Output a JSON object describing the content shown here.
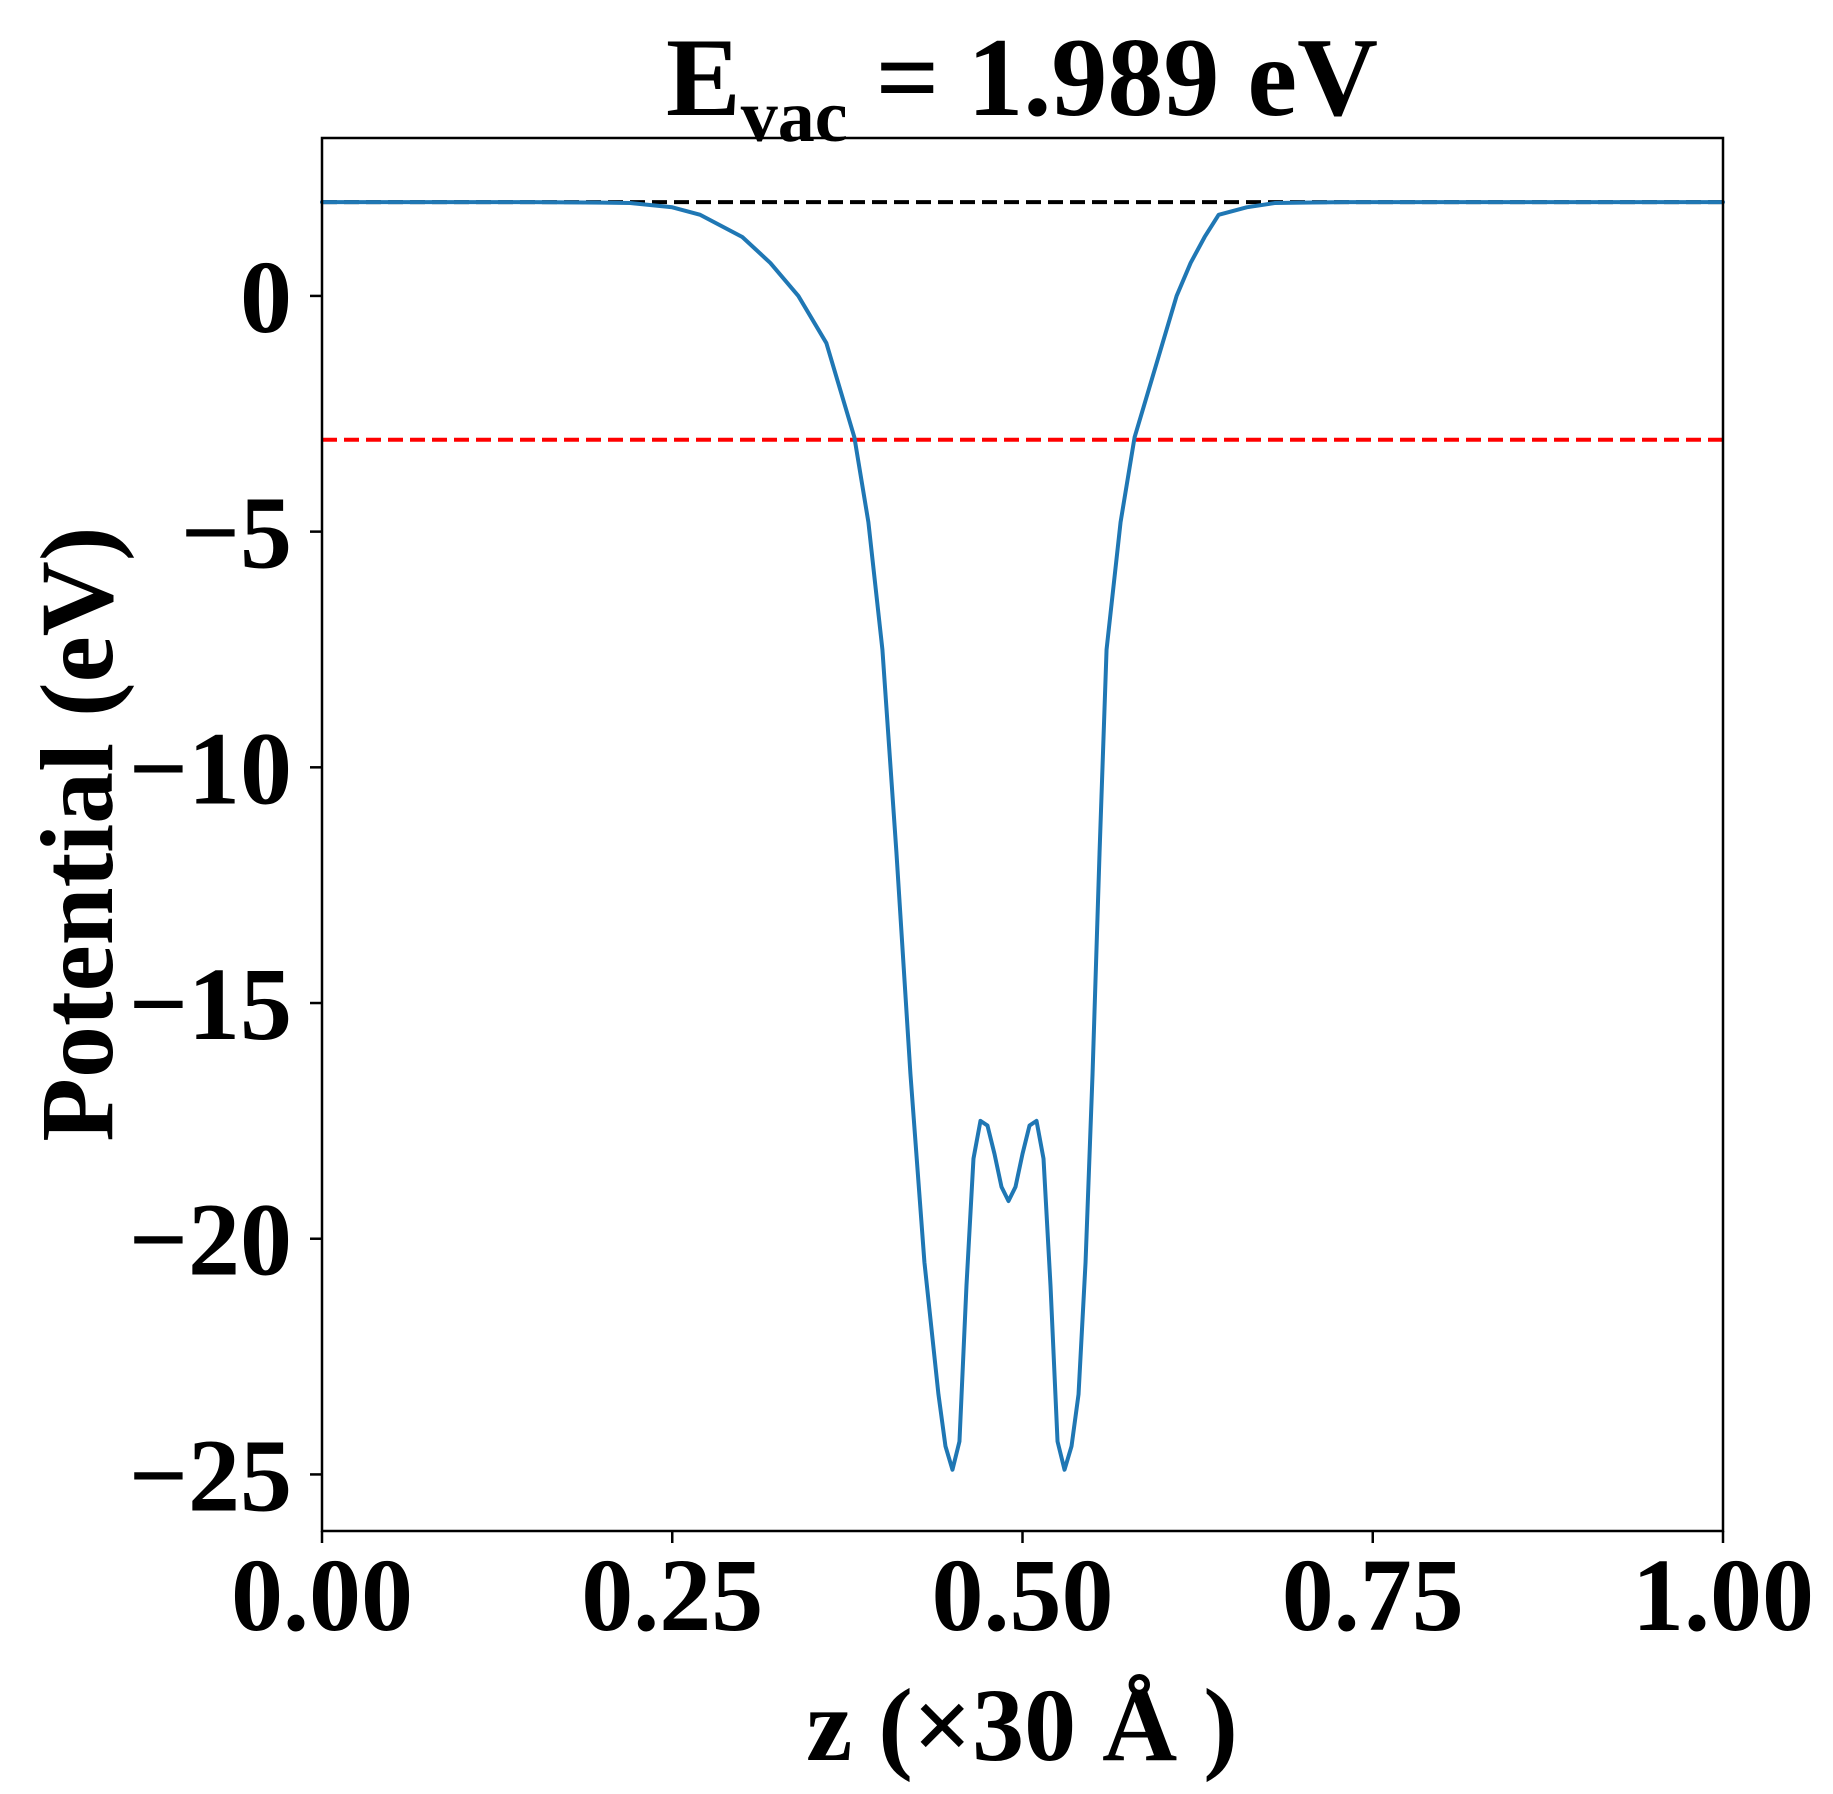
{
  "chart_data": {
    "type": "line",
    "title": {
      "prefix": "E",
      "subscript": "vac",
      "suffix": " = 1.989 eV"
    },
    "xlabel": "z (×30 Å )",
    "ylabel": "Potential (eV)",
    "xlim": [
      0.0,
      1.0
    ],
    "ylim": [
      -26.2,
      3.35
    ],
    "xticks": [
      0.0,
      0.25,
      0.5,
      0.75,
      1.0
    ],
    "xtick_labels": [
      "0.00",
      "0.25",
      "0.50",
      "0.75",
      "1.00"
    ],
    "yticks": [
      0,
      -5,
      -10,
      -15,
      -20,
      -25
    ],
    "ytick_labels": [
      "0",
      "−5",
      "−10",
      "−15",
      "−20",
      "−25"
    ],
    "grid": false,
    "series": [
      {
        "color": "#1f77b4",
        "style": "solid",
        "x": [
          0.0,
          0.05,
          0.1,
          0.15,
          0.2,
          0.22,
          0.25,
          0.27,
          0.3,
          0.32,
          0.34,
          0.36,
          0.37,
          0.38,
          0.39,
          0.4,
          0.41,
          0.42,
          0.43,
          0.44,
          0.445,
          0.45,
          0.455,
          0.46,
          0.465,
          0.47,
          0.475,
          0.48,
          0.485,
          0.49,
          0.495,
          0.5,
          0.505,
          0.51,
          0.515,
          0.52,
          0.525,
          0.53,
          0.535,
          0.54,
          0.545,
          0.55,
          0.555,
          0.56,
          0.57,
          0.58,
          0.59,
          0.6,
          0.61,
          0.62,
          0.63,
          0.64,
          0.66,
          0.68,
          0.7,
          0.73,
          0.75,
          0.78,
          0.8,
          0.85,
          0.9,
          0.95,
          1.0
        ],
        "y": [
          1.99,
          1.99,
          1.99,
          1.99,
          1.98,
          1.97,
          1.88,
          1.72,
          1.25,
          0.7,
          0.0,
          -1.0,
          -2.0,
          -3.0,
          -4.8,
          -7.5,
          -11.8,
          -16.5,
          -20.5,
          -23.3,
          -24.4,
          -24.9,
          -24.3,
          -21.0,
          -18.3,
          -17.5,
          -17.6,
          -18.2,
          -18.9,
          -19.2,
          -18.9,
          -18.2,
          -17.6,
          -17.5,
          -18.3,
          -21.0,
          -24.3,
          -24.9,
          -24.4,
          -23.3,
          -20.5,
          -16.5,
          -11.8,
          -7.5,
          -4.8,
          -3.0,
          -2.0,
          -1.0,
          0.0,
          0.7,
          1.25,
          1.72,
          1.88,
          1.97,
          1.98,
          1.99,
          1.99,
          1.99,
          1.99,
          1.99,
          1.99,
          1.99,
          1.99
        ]
      }
    ],
    "hlines": [
      {
        "y": 1.989,
        "color": "#000000",
        "style": "dashed"
      },
      {
        "y": -3.05,
        "color": "#ff0000",
        "style": "dashed"
      }
    ]
  }
}
